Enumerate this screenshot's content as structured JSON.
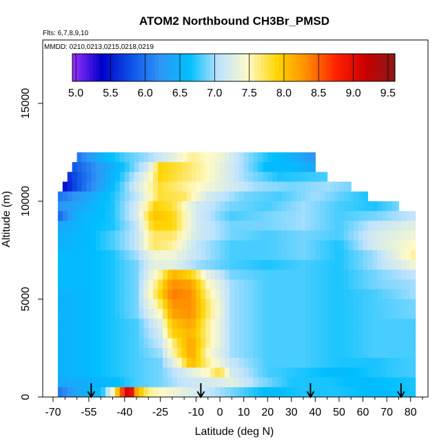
{
  "chart_data": {
    "type": "heatmap",
    "title": "ATOM2 Northbound CH3Br_PMSD",
    "flights_label": "Flts: 6,7,8,9,10",
    "dates_label": "MMDD: 0210,0213,0215,0218,0219",
    "xlabel": "Latitude (deg N)",
    "ylabel": "Altitude (m)",
    "xlim": [
      -70,
      85
    ],
    "ylim": [
      0,
      17500
    ],
    "x_ticks": [
      -70,
      -55,
      -40,
      -25,
      -10,
      0,
      10,
      20,
      30,
      40,
      50,
      60,
      70,
      80
    ],
    "x_tick_labels": [
      "-70",
      "-55",
      "-40",
      "-25",
      "-10",
      "0",
      "10",
      "20",
      "30",
      "40",
      "50",
      "60",
      "70",
      "80"
    ],
    "y_ticks": [
      0,
      5000,
      10000,
      15000
    ],
    "y_tick_labels": [
      "0",
      "5000",
      "10000",
      "15000"
    ],
    "colorbar": {
      "min": 4.95,
      "max": 9.6,
      "ticks": [
        5.0,
        5.5,
        6.0,
        6.5,
        7.0,
        7.5,
        8.0,
        8.5,
        9.0,
        9.5
      ],
      "tick_labels": [
        "5.0",
        "5.5",
        "6.0",
        "6.5",
        "7.0",
        "7.5",
        "8.0",
        "8.5",
        "9.0",
        "9.5"
      ],
      "colors": [
        "#9b30ff",
        "#0000c8",
        "#0f52e6",
        "#2f95f5",
        "#00bfff",
        "#bfe3ff",
        "#fffac8",
        "#ffd400",
        "#ff8c00",
        "#ff2000",
        "#c80000",
        "#8b1a1a"
      ]
    },
    "profile_latitudes": [
      -54,
      -8,
      38,
      76
    ],
    "rows": [
      {
        "alt": 12000,
        "lat_range": [
          -60,
          40
        ],
        "x": [
          -60,
          -50,
          -40,
          -30,
          -20,
          -12,
          0,
          10,
          20,
          30,
          40
        ],
        "v": [
          6.0,
          6.5,
          6.8,
          7.0,
          7.3,
          7.6,
          7.4,
          7.0,
          6.7,
          6.5,
          6.2
        ]
      },
      {
        "alt": 11500,
        "lat_range": [
          -62,
          40
        ],
        "x": [
          -62,
          -50,
          -40,
          -30,
          -25,
          -18,
          -5,
          10,
          20,
          30,
          40
        ],
        "v": [
          5.8,
          6.3,
          6.7,
          7.2,
          7.9,
          7.8,
          7.5,
          7.0,
          6.6,
          6.6,
          6.4
        ]
      },
      {
        "alt": 11000,
        "lat_range": [
          -64,
          45
        ],
        "x": [
          -64,
          -50,
          -40,
          -30,
          -25,
          -15,
          -5,
          10,
          25,
          45
        ],
        "v": [
          5.6,
          6.3,
          6.8,
          7.4,
          7.9,
          7.7,
          7.5,
          7.0,
          6.7,
          6.8
        ]
      },
      {
        "alt": 10500,
        "lat_range": [
          -66,
          55
        ],
        "x": [
          -66,
          -55,
          -45,
          -35,
          -25,
          -15,
          0,
          15,
          30,
          45,
          55
        ],
        "v": [
          5.4,
          6.1,
          6.6,
          7.2,
          7.8,
          7.6,
          7.3,
          7.0,
          6.9,
          7.0,
          6.9
        ]
      },
      {
        "alt": 10000,
        "lat_range": [
          -68,
          62
        ],
        "x": [
          -68,
          -55,
          -45,
          -35,
          -25,
          -15,
          -5,
          10,
          25,
          40,
          55,
          62
        ],
        "v": [
          6.0,
          6.4,
          6.7,
          7.1,
          7.8,
          7.7,
          7.2,
          6.9,
          6.8,
          7.0,
          6.8,
          6.7
        ]
      },
      {
        "alt": 9500,
        "lat_range": [
          -68,
          75
        ],
        "x": [
          -68,
          -55,
          -45,
          -35,
          -27,
          -20,
          -10,
          5,
          20,
          35,
          50,
          65,
          75
        ],
        "v": [
          6.2,
          6.5,
          6.7,
          7.2,
          7.9,
          7.8,
          7.2,
          6.9,
          6.8,
          7.0,
          6.8,
          6.7,
          6.9
        ]
      },
      {
        "alt": 9000,
        "lat_range": [
          -68,
          82
        ],
        "x": [
          -68,
          -60,
          -45,
          -35,
          -28,
          -20,
          -10,
          5,
          20,
          35,
          50,
          65,
          82
        ],
        "v": [
          5.9,
          6.5,
          6.7,
          7.2,
          8.0,
          7.9,
          7.2,
          6.8,
          6.9,
          7.0,
          6.8,
          6.9,
          7.1
        ]
      },
      {
        "alt": 8500,
        "lat_range": [
          -68,
          82
        ],
        "x": [
          -68,
          -55,
          -45,
          -35,
          -28,
          -20,
          -10,
          5,
          20,
          35,
          50,
          65,
          82
        ],
        "v": [
          6.4,
          6.6,
          6.7,
          7.1,
          7.9,
          7.9,
          7.2,
          6.9,
          6.9,
          7.0,
          6.8,
          7.1,
          7.3
        ]
      },
      {
        "alt": 8000,
        "lat_range": [
          -68,
          82
        ],
        "x": [
          -68,
          -55,
          -45,
          -35,
          -28,
          -20,
          -10,
          5,
          20,
          35,
          50,
          65,
          82
        ],
        "v": [
          6.5,
          6.6,
          6.8,
          7.1,
          7.7,
          7.7,
          7.2,
          6.9,
          6.8,
          6.9,
          6.8,
          7.2,
          7.4
        ]
      },
      {
        "alt": 7500,
        "lat_range": [
          -68,
          82
        ],
        "x": [
          -68,
          -55,
          -45,
          -35,
          -28,
          -20,
          -10,
          5,
          20,
          35,
          50,
          65,
          82
        ],
        "v": [
          6.5,
          6.6,
          6.8,
          7.1,
          7.7,
          7.6,
          7.1,
          6.8,
          6.8,
          6.9,
          6.7,
          7.2,
          7.5
        ]
      },
      {
        "alt": 7000,
        "lat_range": [
          -68,
          82
        ],
        "x": [
          -68,
          -55,
          -45,
          -35,
          -28,
          -20,
          -10,
          5,
          20,
          35,
          50,
          65,
          82
        ],
        "v": [
          6.6,
          6.6,
          6.7,
          7.0,
          7.4,
          7.4,
          7.1,
          6.8,
          6.8,
          6.9,
          6.7,
          7.0,
          7.6
        ]
      },
      {
        "alt": 6500,
        "lat_range": [
          -68,
          82
        ],
        "x": [
          -68,
          -55,
          -45,
          -35,
          -28,
          -20,
          -10,
          5,
          20,
          35,
          50,
          65,
          82
        ],
        "v": [
          6.6,
          6.6,
          6.7,
          6.9,
          7.3,
          7.3,
          7.0,
          6.8,
          6.7,
          6.8,
          6.7,
          7.0,
          7.4
        ]
      },
      {
        "alt": 6000,
        "lat_range": [
          -68,
          82
        ],
        "x": [
          -68,
          -55,
          -45,
          -35,
          -25,
          -20,
          -12,
          -5,
          5,
          20,
          35,
          50,
          65,
          82
        ],
        "v": [
          6.6,
          6.6,
          6.7,
          6.9,
          7.6,
          8.1,
          7.9,
          7.3,
          6.9,
          6.8,
          6.8,
          6.7,
          6.9,
          7.1
        ]
      },
      {
        "alt": 5500,
        "lat_range": [
          -68,
          82
        ],
        "x": [
          -68,
          -55,
          -45,
          -35,
          -25,
          -20,
          -12,
          -5,
          5,
          20,
          35,
          50,
          65,
          82
        ],
        "v": [
          6.6,
          6.6,
          6.7,
          6.9,
          7.8,
          8.3,
          8.2,
          7.5,
          7.0,
          6.8,
          6.8,
          6.7,
          6.9,
          7.0
        ]
      },
      {
        "alt": 5000,
        "lat_range": [
          -68,
          82
        ],
        "x": [
          -68,
          -55,
          -45,
          -35,
          -25,
          -20,
          -12,
          -5,
          5,
          20,
          35,
          50,
          65,
          82
        ],
        "v": [
          6.5,
          6.6,
          6.7,
          6.9,
          7.9,
          8.4,
          8.3,
          7.6,
          7.0,
          6.8,
          6.8,
          6.7,
          6.8,
          7.0
        ]
      },
      {
        "alt": 4500,
        "lat_range": [
          -68,
          82
        ],
        "x": [
          -68,
          -55,
          -45,
          -35,
          -25,
          -20,
          -12,
          -5,
          5,
          20,
          35,
          50,
          65,
          82
        ],
        "v": [
          6.5,
          6.6,
          6.7,
          6.9,
          7.7,
          8.3,
          8.3,
          7.7,
          7.0,
          6.8,
          6.8,
          6.7,
          6.8,
          6.9
        ]
      },
      {
        "alt": 4000,
        "lat_range": [
          -68,
          82
        ],
        "x": [
          -68,
          -55,
          -45,
          -35,
          -25,
          -20,
          -12,
          -5,
          5,
          20,
          35,
          50,
          65,
          82
        ],
        "v": [
          6.5,
          6.6,
          6.7,
          6.9,
          7.5,
          8.2,
          8.3,
          7.7,
          7.0,
          6.8,
          6.8,
          6.7,
          6.8,
          6.9
        ]
      },
      {
        "alt": 3500,
        "lat_range": [
          -68,
          82
        ],
        "x": [
          -68,
          -55,
          -45,
          -35,
          -25,
          -20,
          -12,
          -5,
          5,
          20,
          35,
          50,
          65,
          82
        ],
        "v": [
          6.5,
          6.6,
          6.7,
          6.8,
          7.3,
          8.0,
          8.2,
          7.6,
          7.0,
          6.8,
          6.8,
          6.7,
          6.8,
          6.8
        ]
      },
      {
        "alt": 3000,
        "lat_range": [
          -68,
          82
        ],
        "x": [
          -68,
          -55,
          -45,
          -35,
          -25,
          -20,
          -12,
          -5,
          5,
          20,
          35,
          50,
          65,
          82
        ],
        "v": [
          6.5,
          6.6,
          6.7,
          6.8,
          7.2,
          7.9,
          8.1,
          7.6,
          7.0,
          6.8,
          6.8,
          6.7,
          6.8,
          6.8
        ]
      },
      {
        "alt": 2500,
        "lat_range": [
          -68,
          82
        ],
        "x": [
          -68,
          -55,
          -45,
          -35,
          -25,
          -18,
          -12,
          -5,
          5,
          20,
          35,
          50,
          65,
          82
        ],
        "v": [
          6.5,
          6.6,
          6.7,
          6.8,
          7.1,
          7.8,
          8.2,
          7.6,
          7.0,
          6.8,
          6.8,
          6.7,
          6.8,
          6.8
        ]
      },
      {
        "alt": 2000,
        "lat_range": [
          -68,
          82
        ],
        "x": [
          -68,
          -55,
          -45,
          -35,
          -25,
          -18,
          -12,
          -5,
          5,
          20,
          35,
          50,
          65,
          82
        ],
        "v": [
          6.5,
          6.6,
          6.7,
          6.8,
          7.0,
          7.7,
          8.2,
          7.5,
          7.0,
          6.8,
          6.8,
          6.7,
          6.8,
          6.8
        ]
      },
      {
        "alt": 1500,
        "lat_range": [
          -68,
          82
        ],
        "x": [
          -68,
          -55,
          -45,
          -35,
          -25,
          -18,
          -12,
          -5,
          5,
          20,
          35,
          50,
          65,
          82
        ],
        "v": [
          6.5,
          6.6,
          6.7,
          6.8,
          6.9,
          7.4,
          8.1,
          7.6,
          7.1,
          6.8,
          6.8,
          6.7,
          6.7,
          6.8
        ]
      },
      {
        "alt": 1000,
        "lat_range": [
          -68,
          82
        ],
        "x": [
          -68,
          -55,
          -45,
          -35,
          -25,
          -15,
          -5,
          0,
          5,
          20,
          35,
          50,
          65,
          82
        ],
        "v": [
          6.5,
          6.6,
          6.7,
          6.8,
          6.9,
          7.2,
          7.5,
          7.8,
          7.2,
          6.8,
          6.7,
          6.6,
          6.7,
          6.8
        ]
      },
      {
        "alt": 500,
        "lat_range": [
          -68,
          82
        ],
        "x": [
          -68,
          -55,
          -45,
          -35,
          -25,
          -15,
          -5,
          5,
          15,
          30,
          45,
          60,
          82
        ],
        "v": [
          6.4,
          6.5,
          6.6,
          6.8,
          6.9,
          7.1,
          7.2,
          7.3,
          7.0,
          6.7,
          6.7,
          6.6,
          6.7
        ]
      },
      {
        "alt": 0,
        "lat_range": [
          -68,
          82
        ],
        "x": [
          -68,
          -60,
          -50,
          -45,
          -41,
          -38,
          -35,
          -30,
          -25,
          -15,
          0,
          10,
          20,
          35,
          50,
          65,
          82
        ],
        "v": [
          6.0,
          6.4,
          6.6,
          7.4,
          8.6,
          9.3,
          8.2,
          7.6,
          7.5,
          7.3,
          7.0,
          6.8,
          6.6,
          6.7,
          6.7,
          6.6,
          6.7
        ]
      }
    ]
  }
}
